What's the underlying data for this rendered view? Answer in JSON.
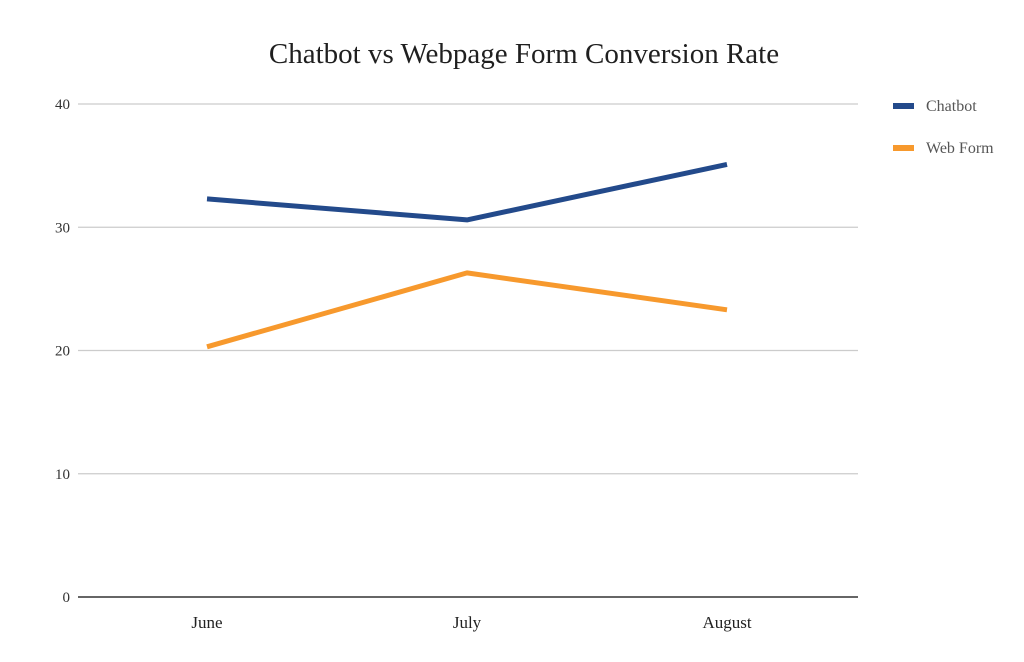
{
  "chart_data": {
    "type": "line",
    "title": "Chatbot vs Webpage Form Conversion Rate",
    "categories": [
      "June",
      "July",
      "August"
    ],
    "series": [
      {
        "name": "Chatbot",
        "values": [
          32.3,
          30.6,
          35.1
        ],
        "color": "#234A8B"
      },
      {
        "name": "Web Form",
        "values": [
          20.3,
          26.3,
          23.3
        ],
        "color": "#F7992D"
      }
    ],
    "yticks": [
      "0",
      "10",
      "20",
      "30",
      "40"
    ],
    "ylim": [
      0,
      40
    ],
    "xlabel": "",
    "ylabel": "",
    "grid": true,
    "legend_position": "right"
  }
}
